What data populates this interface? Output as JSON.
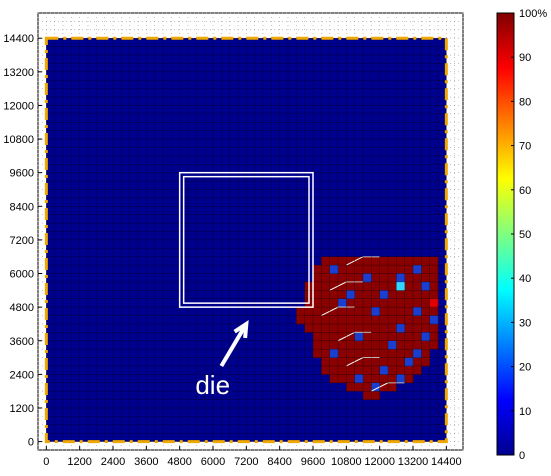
{
  "chart_data": {
    "type": "heatmap",
    "title": "",
    "xlabel": "",
    "ylabel": "",
    "xlim": [
      -300,
      15000
    ],
    "ylim": [
      -300,
      15300
    ],
    "x_ticks": [
      "0",
      "1200",
      "2400",
      "3600",
      "4800",
      "6000",
      "7200",
      "8400",
      "9600",
      "10800",
      "12000",
      "13200",
      "14400"
    ],
    "y_ticks": [
      "0",
      "1200",
      "2400",
      "3600",
      "4800",
      "6000",
      "7200",
      "8400",
      "9600",
      "10800",
      "12000",
      "13200",
      "14400"
    ],
    "grid_step": 300,
    "grid_range": [
      0,
      14400
    ],
    "colorbar": {
      "min": 0,
      "max": 100,
      "unit": "%",
      "ticks": [
        "0",
        "10",
        "20",
        "30",
        "40",
        "50",
        "60",
        "70",
        "80",
        "90",
        "100%"
      ]
    },
    "background_value": 0,
    "die_rect": {
      "x": [
        4800,
        9600
      ],
      "y": [
        4800,
        9600
      ]
    },
    "boundary_rect": {
      "x": [
        0,
        14400
      ],
      "y": [
        0,
        14400
      ]
    },
    "annotation": {
      "text": "die",
      "arrow_to": [
        7200,
        4200
      ],
      "arrow_from": [
        6300,
        2700
      ]
    },
    "colors": {
      "low": "#00008f",
      "high": "#8b0000",
      "boundary": "#f0a800",
      "grid": "#000000"
    },
    "hotspot": {
      "rows": [
        {
          "y": 6300,
          "x0": 9900,
          "x1": 14100
        },
        {
          "y": 6000,
          "x0": 9600,
          "x1": 14100
        },
        {
          "y": 5700,
          "x0": 9600,
          "x1": 14100
        },
        {
          "y": 5400,
          "x0": 9300,
          "x1": 14100
        },
        {
          "y": 5100,
          "x0": 9300,
          "x1": 14100
        },
        {
          "y": 4800,
          "x0": 9300,
          "x1": 14100
        },
        {
          "y": 4500,
          "x0": 9000,
          "x1": 14100
        },
        {
          "y": 4200,
          "x0": 9000,
          "x1": 14100
        },
        {
          "y": 3900,
          "x0": 9300,
          "x1": 14100
        },
        {
          "y": 3600,
          "x0": 9600,
          "x1": 14100
        },
        {
          "y": 3300,
          "x0": 9600,
          "x1": 14100
        },
        {
          "y": 3000,
          "x0": 9600,
          "x1": 13800
        },
        {
          "y": 2700,
          "x0": 9900,
          "x1": 13800
        },
        {
          "y": 2400,
          "x0": 9900,
          "x1": 13500
        },
        {
          "y": 2100,
          "x0": 10200,
          "x1": 13200
        },
        {
          "y": 1800,
          "x0": 10800,
          "x1": 12600
        },
        {
          "y": 1500,
          "x0": 11400,
          "x1": 12000
        }
      ],
      "low_cells": [
        [
          13200,
          6000
        ],
        [
          10200,
          6000
        ],
        [
          11400,
          5700
        ],
        [
          12600,
          5700
        ],
        [
          13500,
          5400
        ],
        [
          10800,
          5100
        ],
        [
          12000,
          5100
        ],
        [
          10500,
          4800
        ],
        [
          11700,
          4500
        ],
        [
          13200,
          4500
        ],
        [
          13800,
          4200
        ],
        [
          12600,
          3900
        ],
        [
          11100,
          3600
        ],
        [
          13500,
          3600
        ],
        [
          12300,
          3300
        ],
        [
          10200,
          3000
        ],
        [
          12900,
          2700
        ],
        [
          12000,
          2400
        ],
        [
          11100,
          2100
        ],
        [
          12600,
          2100
        ],
        [
          11700,
          1800
        ],
        [
          13200,
          3000
        ]
      ],
      "cyan_cells": [
        [
          12600,
          5400
        ]
      ],
      "red_cells": [
        [
          13800,
          4800
        ]
      ]
    }
  }
}
